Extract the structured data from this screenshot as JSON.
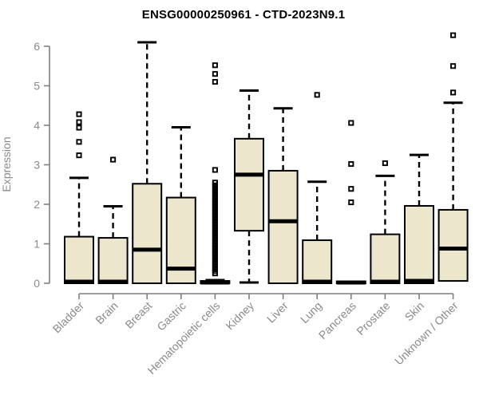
{
  "chart_data": {
    "type": "boxplot",
    "title": "ENSG00000250961 - CTD-2023N9.1",
    "ylabel": "Expression",
    "xlabel": "",
    "ylim": [
      0,
      6
    ],
    "yticks": [
      0,
      1,
      2,
      3,
      4,
      5,
      6
    ],
    "grid": false,
    "legend": "none",
    "colors": {
      "box_fill": "#ece6cd",
      "box_border": "#000000",
      "median": "#000000",
      "whisker": "#000000",
      "outlier": "#000000",
      "axis": "#7e7e7e",
      "tick_text": "#8a8a8a",
      "title_text": "#000000"
    },
    "categories": [
      "Bladder",
      "Brain",
      "Breast",
      "Gastric",
      "Hematopoietic cells",
      "Kidney",
      "Liver",
      "Lung",
      "Pancreas",
      "Prostate",
      "Skin",
      "Unknown / Other"
    ],
    "series": [
      {
        "category": "Bladder",
        "whisker_low": 0,
        "q1": 0,
        "median": 0.04,
        "q3": 1.18,
        "whisker_high": 2.67,
        "outliers": [
          3.24,
          3.58,
          3.94,
          4.08,
          4.28
        ]
      },
      {
        "category": "Brain",
        "whisker_low": 0,
        "q1": 0,
        "median": 0.04,
        "q3": 1.15,
        "whisker_high": 1.95,
        "outliers": [
          3.13
        ]
      },
      {
        "category": "Breast",
        "whisker_low": 0,
        "q1": 0,
        "median": 0.85,
        "q3": 2.52,
        "whisker_high": 6.1,
        "outliers": []
      },
      {
        "category": "Gastric",
        "whisker_low": 0,
        "q1": 0,
        "median": 0.37,
        "q3": 2.17,
        "whisker_high": 3.95,
        "outliers": []
      },
      {
        "category": "Hematopoietic cells",
        "whisker_low": 0,
        "q1": 0,
        "median": 0.02,
        "q3": 0.06,
        "whisker_high": 0.08,
        "outliers": [
          5.52,
          5.3,
          5.1,
          2.87,
          2.55,
          2.48,
          2.41,
          2.34,
          2.27,
          2.2,
          2.13,
          2.06,
          1.99,
          1.92,
          1.85,
          1.78,
          1.71,
          1.64,
          1.57,
          1.5,
          1.43,
          1.36,
          1.29,
          1.22,
          1.15,
          1.08,
          1.01,
          0.94,
          0.87,
          0.8,
          0.73,
          0.66,
          0.59,
          0.52,
          0.45,
          0.38,
          0.31,
          0.25
        ]
      },
      {
        "category": "Kidney",
        "whisker_low": 0.02,
        "q1": 1.33,
        "median": 2.75,
        "q3": 3.66,
        "whisker_high": 4.88,
        "outliers": []
      },
      {
        "category": "Liver",
        "whisker_low": 0,
        "q1": 0,
        "median": 1.57,
        "q3": 2.85,
        "whisker_high": 4.43,
        "outliers": []
      },
      {
        "category": "Lung",
        "whisker_low": 0,
        "q1": 0,
        "median": 0.04,
        "q3": 1.09,
        "whisker_high": 2.57,
        "outliers": [
          4.77
        ]
      },
      {
        "category": "Pancreas",
        "whisker_low": 0,
        "q1": 0,
        "median": 0.02,
        "q3": 0.05,
        "whisker_high": 0.06,
        "outliers": [
          4.06,
          3.02,
          2.39,
          2.05
        ]
      },
      {
        "category": "Prostate",
        "whisker_low": 0,
        "q1": 0,
        "median": 0.04,
        "q3": 1.24,
        "whisker_high": 2.72,
        "outliers": [
          3.04
        ]
      },
      {
        "category": "Skin",
        "whisker_low": 0,
        "q1": 0,
        "median": 0.06,
        "q3": 1.96,
        "whisker_high": 3.25,
        "outliers": []
      },
      {
        "category": "Unknown / Other",
        "whisker_low": 0.06,
        "q1": 0.06,
        "median": 0.88,
        "q3": 1.86,
        "whisker_high": 4.57,
        "outliers": [
          4.83,
          5.5,
          6.28
        ]
      }
    ]
  }
}
